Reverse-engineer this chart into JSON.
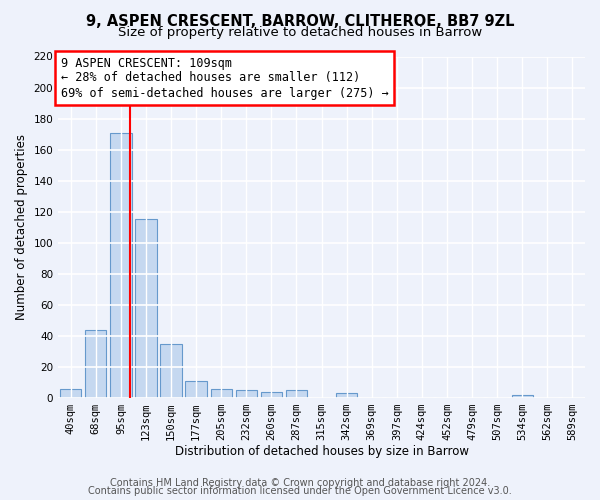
{
  "title_line1": "9, ASPEN CRESCENT, BARROW, CLITHEROE, BB7 9ZL",
  "title_line2": "Size of property relative to detached houses in Barrow",
  "xlabel": "Distribution of detached houses by size in Barrow",
  "ylabel": "Number of detached properties",
  "categories": [
    "40sqm",
    "68sqm",
    "95sqm",
    "123sqm",
    "150sqm",
    "177sqm",
    "205sqm",
    "232sqm",
    "260sqm",
    "287sqm",
    "315sqm",
    "342sqm",
    "369sqm",
    "397sqm",
    "424sqm",
    "452sqm",
    "479sqm",
    "507sqm",
    "534sqm",
    "562sqm",
    "589sqm"
  ],
  "bar_heights": [
    6,
    44,
    171,
    115,
    35,
    11,
    6,
    5,
    4,
    5,
    0,
    3,
    0,
    0,
    0,
    0,
    0,
    0,
    2,
    0,
    0
  ],
  "bar_color": "#c5d8f0",
  "bar_edge_color": "#6699cc",
  "ylim": [
    0,
    220
  ],
  "yticks": [
    0,
    20,
    40,
    60,
    80,
    100,
    120,
    140,
    160,
    180,
    200,
    220
  ],
  "red_line_x": 2.38,
  "annotation_line1": "9 ASPEN CRESCENT: 109sqm",
  "annotation_line2": "← 28% of detached houses are smaller (112)",
  "annotation_line3": "69% of semi-detached houses are larger (275) →",
  "footer_line1": "Contains HM Land Registry data © Crown copyright and database right 2024.",
  "footer_line2": "Contains public sector information licensed under the Open Government Licence v3.0.",
  "background_color": "#eef2fb",
  "grid_color": "#ffffff",
  "title_fontsize": 10.5,
  "subtitle_fontsize": 9.5,
  "axis_label_fontsize": 8.5,
  "tick_fontsize": 7.5,
  "annotation_fontsize": 8.5,
  "footer_fontsize": 7
}
